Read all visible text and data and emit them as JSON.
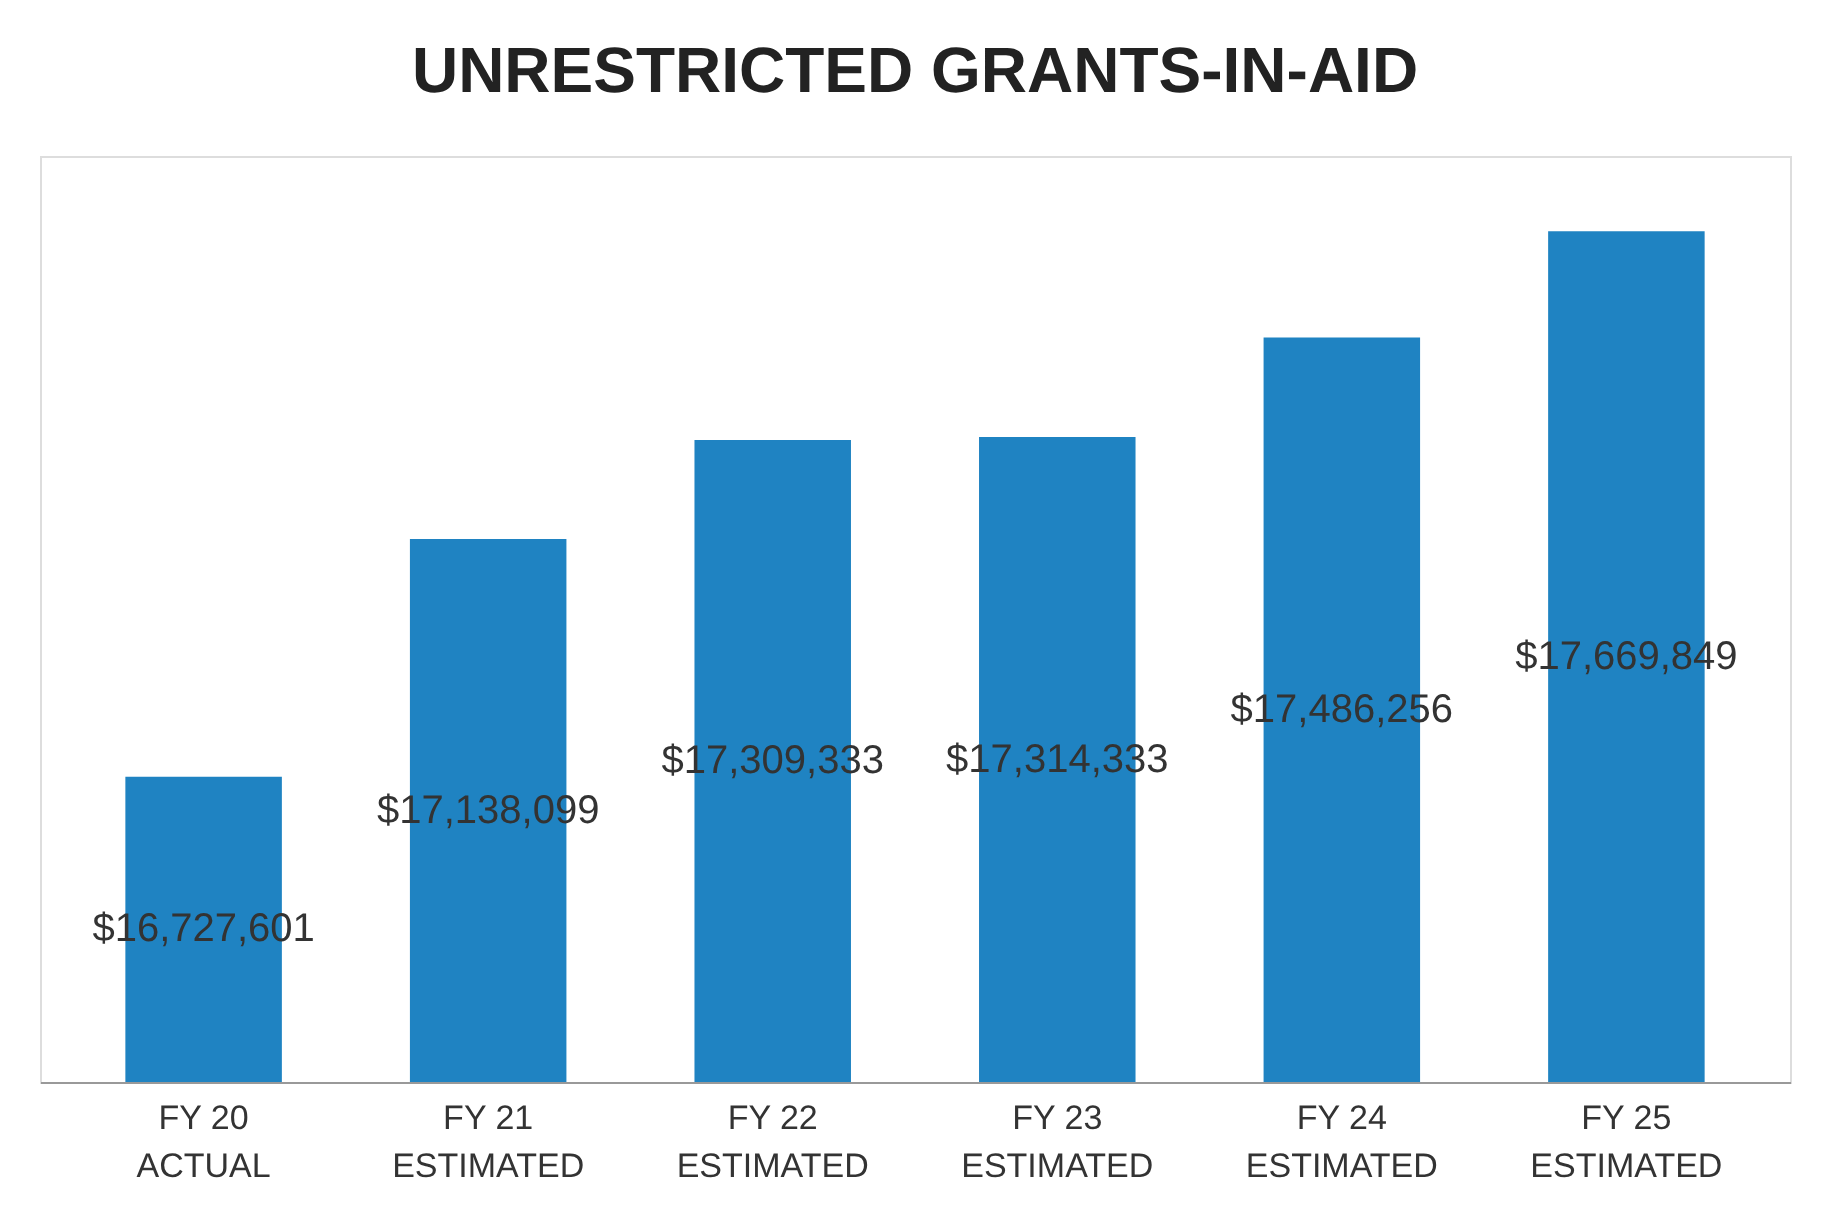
{
  "chart_data": {
    "type": "bar",
    "title": "UNRESTRICTED GRANTS-IN-AID",
    "categories": [
      "FY 20\nACTUAL",
      "FY 21\nESTIMATED",
      "FY 22\nESTIMATED",
      "FY 23\nESTIMATED",
      "FY 24\nESTIMATED",
      "FY 25\nESTIMATED"
    ],
    "values": [
      16727601,
      17138099,
      17309333,
      17314333,
      17486256,
      17669849
    ],
    "ylim": [
      16200000,
      17800000
    ],
    "value_labels": [
      "$16,727,601",
      "$17,138,099",
      "$17,309,333",
      "$17,314,333",
      "$17,486,256",
      "$17,669,849"
    ],
    "color": "#1f83c2",
    "tick_labels": "x"
  }
}
